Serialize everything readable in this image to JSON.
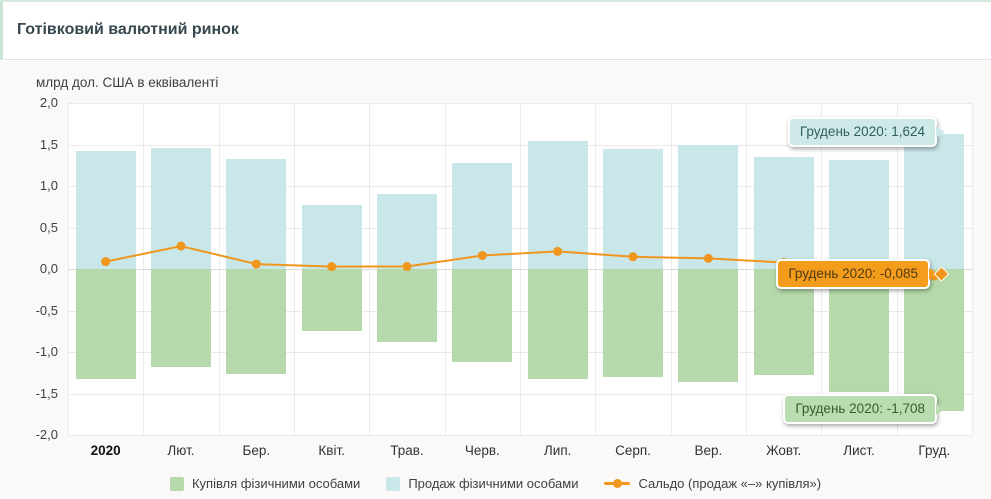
{
  "header": {
    "title": "Готівковий валютний ринок"
  },
  "axis_title": "млрд дол. США в еквіваленті",
  "y_axis": {
    "ticks": [
      "2,0",
      "1,5",
      "1,0",
      "0,5",
      "0,0",
      "-0,5",
      "-1,0",
      "-1,5",
      "-2,0"
    ]
  },
  "legend": {
    "buy_label": "Купівля фізичними особами",
    "sale_label": "Продаж фізичними особами",
    "balance_label": "Сальдо (продаж «–» купівля»)"
  },
  "tooltips": {
    "sales_dec": "Грудень 2020: 1,624",
    "balance_dec": "Грудень 2020: -0,085",
    "purchase_dec": "Грудень 2020: -1,708"
  },
  "colors": {
    "sale_bar": "#c9e6e8",
    "buy_bar": "#b5d9ab",
    "balance_line": "#f0961d",
    "header_accent": "#c9e4d5"
  },
  "chart_data": {
    "type": "bar+line",
    "title": "Готівковий валютний ринок",
    "ylabel": "млрд дол. США в еквіваленті",
    "categories": [
      "2020",
      "Лют.",
      "Бер.",
      "Квіт.",
      "Трав.",
      "Черв.",
      "Лип.",
      "Серп.",
      "Вер.",
      "Жовт.",
      "Лист.",
      "Груд."
    ],
    "series": [
      {
        "name": "Купівля фізичними особами",
        "type": "bar",
        "color": "#b5d9ab",
        "values": [
          -1.328,
          -1.18,
          -1.27,
          -0.748,
          -0.876,
          -1.118,
          -1.325,
          -1.296,
          -1.361,
          -1.277,
          -1.48,
          -1.708
        ]
      },
      {
        "name": "Продаж фізичними особами",
        "type": "bar",
        "color": "#c9e6e8",
        "values": [
          1.417,
          1.456,
          1.329,
          0.777,
          0.906,
          1.281,
          1.537,
          1.443,
          1.489,
          1.355,
          1.312,
          1.624
        ]
      },
      {
        "name": "Сальдо (продаж «–» купівля»)",
        "type": "line",
        "color": "#f0961d",
        "values": [
          0.089,
          0.276,
          0.059,
          0.029,
          0.03,
          0.163,
          0.212,
          0.147,
          0.128,
          0.078,
          -0.168,
          -0.085
        ]
      }
    ],
    "ylim": [
      -2.0,
      2.0
    ],
    "ytick_step": 0.5,
    "grid": true,
    "legend_position": "bottom",
    "annotations": [
      {
        "series": "Продаж фізичними особами",
        "point": "Груд.",
        "text": "Грудень 2020: 1,624"
      },
      {
        "series": "Сальдо (продаж «–» купівля»)",
        "point": "Груд.",
        "text": "Грудень 2020: -0,085"
      },
      {
        "series": "Купівля фізичними особами",
        "point": "Груд.",
        "text": "Грудень 2020: -1,708"
      }
    ]
  }
}
